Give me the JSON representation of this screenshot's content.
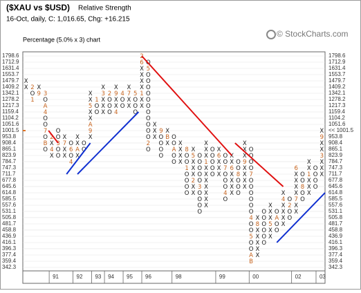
{
  "header": {
    "title": "($XAU vs $USD)",
    "subtitle": "Relative Strength",
    "info": "16-Oct, daily, C: 1,016.65, Chg: +16.215",
    "brand": "© StockCharts.com",
    "chart_label": "Percentage (5.0% x 3) chart"
  },
  "chart_data": {
    "type": "point-figure",
    "log_scale": true,
    "grid": true,
    "ylim": [
      342.3,
      1798.6
    ],
    "yticks": [
      1798.6,
      1712.9,
      1631.4,
      1553.7,
      1479.7,
      1409.2,
      1342.1,
      1278.2,
      1217.3,
      1159.4,
      1104.2,
      1051.6,
      1001.5,
      953.8,
      908.4,
      865.1,
      823.9,
      784.7,
      747.3,
      711.7,
      677.8,
      645.6,
      614.8,
      585.5,
      557.6,
      531.1,
      505.8,
      481.7,
      458.8,
      436.9,
      416.1,
      396.3,
      377.4,
      359.4,
      342.3
    ],
    "current": {
      "value": 1001.5,
      "label": "<< 1001.5",
      "color": "#e07020"
    },
    "xlim": [
      -0.5,
      46.5
    ],
    "xticks": [
      {
        "value": 3.6,
        "label": "91"
      },
      {
        "value": 7.3,
        "label": "92"
      },
      {
        "value": 10.2,
        "label": "93"
      },
      {
        "value": 12.2,
        "label": "94"
      },
      {
        "value": 15.1,
        "label": "95"
      },
      {
        "value": 18,
        "label": "96"
      },
      {
        "value": 22.7,
        "label": "98"
      },
      {
        "value": 29.5,
        "label": "99"
      },
      {
        "value": 34.7,
        "label": "00"
      },
      {
        "value": 41.3,
        "label": "02"
      },
      {
        "value": 45.1,
        "label": "03"
      }
    ],
    "symbol_color": "#222222",
    "month_color": "#c8641e",
    "columns": [
      {
        "top": 1479.7,
        "cells": "XX"
      },
      {
        "top": 1409.2,
        "cells": "2O1"
      },
      {
        "top": 1409.2,
        "cells": "X9"
      },
      {
        "top": 1342.1,
        "cells": "3OA4OO7OBO"
      },
      {
        "top": 953.8,
        "cells": "2X4X"
      },
      {
        "top": 1001.5,
        "cells": "OO3OO"
      },
      {
        "top": 953.8,
        "cells": "X7XX"
      },
      {
        "top": 908.4,
        "cells": "O6O4"
      },
      {
        "top": 953.8,
        "cells": "XXAX"
      },
      {
        "top": 908.4,
        "cells": "OO"
      },
      {
        "top": 1342.1,
        "cells": "XX5XXA9X"
      },
      {
        "top": 1278.2,
        "cells": "1OO"
      },
      {
        "top": 1409.2,
        "cells": "X3XXX"
      },
      {
        "top": 1342.1,
        "cells": "2OOO"
      },
      {
        "top": 1409.2,
        "cells": "X9XX4"
      },
      {
        "top": 1342.1,
        "cells": "4OO"
      },
      {
        "top": 1409.2,
        "cells": "X7XX"
      },
      {
        "top": 1342.1,
        "cells": "5OOO"
      },
      {
        "top": 1798.6,
        "cells": "26XXXX1XX"
      },
      {
        "top": 1712.9,
        "cells": "O5OOOOOOOOOOO2O"
      },
      {
        "top": 1051.6,
        "cells": "XXX"
      },
      {
        "top": 1001.5,
        "cells": "9OOOO"
      },
      {
        "top": 1001.5,
        "cells": "XBX"
      },
      {
        "top": 953.8,
        "cells": "OOAOO"
      },
      {
        "top": 908.4,
        "cells": "XXXX"
      },
      {
        "top": 865.1,
        "cells": "8OO1OOOO"
      },
      {
        "top": 865.1,
        "cells": "X5XXX2XX"
      },
      {
        "top": 823.9,
        "cells": "OOOOO3OOOO"
      },
      {
        "top": 908.4,
        "cells": "XXX1XXXXXXX"
      },
      {
        "top": 865.1,
        "cells": "OOOOO"
      },
      {
        "top": 865.1,
        "cells": "X6XXX"
      },
      {
        "top": 823.9,
        "cells": "OO7OOO4O"
      },
      {
        "top": 823.9,
        "cells": "XX6XXXX"
      },
      {
        "top": 784.7,
        "cells": "OO8OOO"
      },
      {
        "top": 908.4,
        "cells": "XXX9XXXX"
      },
      {
        "top": 865.1,
        "cells": "OOOO7OOOOOO4OO5OOAB"
      },
      {
        "top": 505.8,
        "cells": "X8XXXXX"
      },
      {
        "top": 531.1,
        "cells": "OOOOOO"
      },
      {
        "top": 557.6,
        "cells": "XXX5XX"
      },
      {
        "top": 531.1,
        "cells": "OAOO"
      },
      {
        "top": 614.8,
        "cells": "X4XXXX"
      },
      {
        "top": 585.5,
        "cells": "O2OO"
      },
      {
        "top": 747.3,
        "cells": "6XXXX7XX"
      },
      {
        "top": 711.7,
        "cells": "OO8OO"
      },
      {
        "top": 784.7,
        "cells": "XX1XXX"
      },
      {
        "top": 747.3,
        "cells": "OOOO"
      },
      {
        "top": 1001.5,
        "cells": "X9XX3XXX"
      }
    ],
    "trendlines": [
      {
        "color": "#e01010",
        "from": [
          3.5,
          1001.5
        ],
        "to": [
          5,
          908.4
        ]
      },
      {
        "color": "#e01010",
        "from": [
          18,
          1798.6
        ],
        "to": [
          32,
          823.9
        ]
      },
      {
        "color": "#e01010",
        "from": [
          32.5,
          908.4
        ],
        "to": [
          40,
          645.6
        ]
      },
      {
        "color": "#1030d0",
        "from": [
          6.3,
          711.7
        ],
        "to": [
          10,
          908.4
        ]
      },
      {
        "color": "#1030d0",
        "from": [
          8,
          711.7
        ],
        "to": [
          17.5,
          1159.4
        ]
      },
      {
        "color": "#1030d0",
        "from": [
          39,
          416.1
        ],
        "to": [
          46.5,
          614.8
        ]
      }
    ]
  }
}
